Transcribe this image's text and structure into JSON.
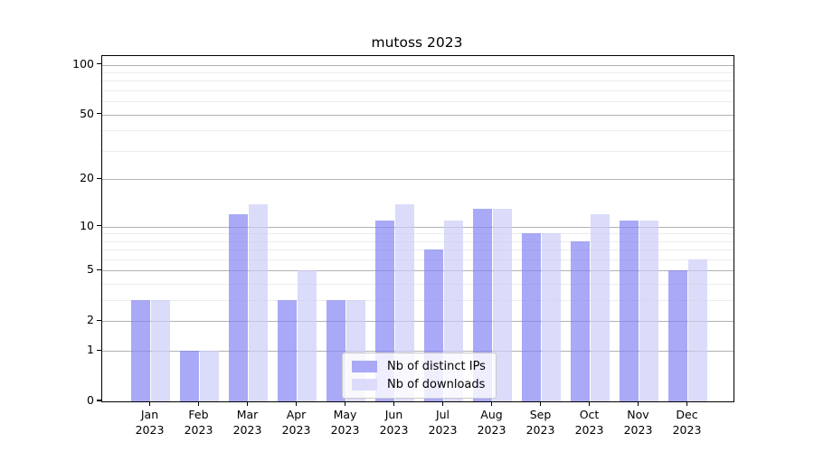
{
  "title": "mutoss 2023",
  "colors": {
    "ips_bar_fill": "rgba(132,132,244,0.7)",
    "downloads_bar_fill": "rgba(204,204,248,0.7)",
    "ips_swatch": "#a9a9f7",
    "downloads_swatch": "#dcdcfa",
    "major_gridline": "#b2b2b2",
    "minor_gridline": "#ececec",
    "axis": "#000000"
  },
  "y_axis": {
    "major_ticks": [
      0,
      1,
      2,
      5,
      10,
      20,
      50,
      100
    ],
    "minor_gridlines": [
      3,
      4,
      6,
      7,
      8,
      9,
      30,
      40,
      60,
      70,
      80,
      90
    ],
    "scale": "log1p",
    "max": 113
  },
  "x_axis": {
    "tick_labels": [
      [
        "Jan",
        "2023"
      ],
      [
        "Feb",
        "2023"
      ],
      [
        "Mar",
        "2023"
      ],
      [
        "Apr",
        "2023"
      ],
      [
        "May",
        "2023"
      ],
      [
        "Jun",
        "2023"
      ],
      [
        "Jul",
        "2023"
      ],
      [
        "Aug",
        "2023"
      ],
      [
        "Sep",
        "2023"
      ],
      [
        "Oct",
        "2023"
      ],
      [
        "Nov",
        "2023"
      ],
      [
        "Dec",
        "2023"
      ]
    ]
  },
  "legend": {
    "position": "lower-center",
    "items": [
      {
        "label": "Nb of distinct IPs",
        "series": "ips"
      },
      {
        "label": "Nb of downloads",
        "series": "downloads"
      }
    ]
  },
  "chart_data": {
    "type": "bar",
    "title": "mutoss 2023",
    "categories": [
      "Jan 2023",
      "Feb 2023",
      "Mar 2023",
      "Apr 2023",
      "May 2023",
      "Jun 2023",
      "Jul 2023",
      "Aug 2023",
      "Sep 2023",
      "Oct 2023",
      "Nov 2023",
      "Dec 2023"
    ],
    "series": [
      {
        "name": "Nb of distinct IPs",
        "values": [
          3,
          1,
          12,
          3,
          3,
          11,
          7,
          13,
          9,
          8,
          11,
          5
        ]
      },
      {
        "name": "Nb of downloads",
        "values": [
          3,
          1,
          14,
          5,
          3,
          14,
          11,
          13,
          9,
          12,
          11,
          6
        ]
      }
    ],
    "xlabel": "",
    "ylabel": "",
    "ylim": [
      0,
      113
    ],
    "yscale": "log1p",
    "yticks": [
      0,
      1,
      2,
      5,
      10,
      20,
      50,
      100
    ],
    "grid": true,
    "legend_position": "lower-center"
  }
}
